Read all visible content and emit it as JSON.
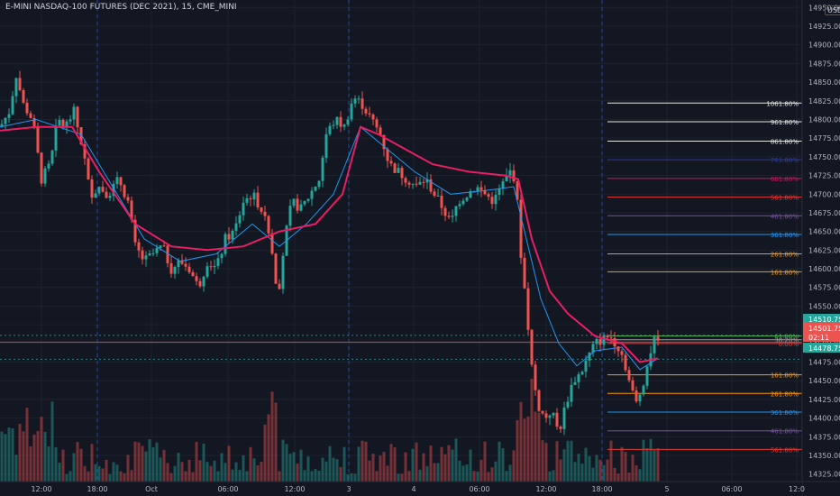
{
  "header": {
    "title": "E-MINI NASDAQ-100 FUTURES (DEC 2021), 15, CME_MINI",
    "currency": "USD"
  },
  "colors": {
    "background": "#131722",
    "grid": "#1e222d",
    "up": "#26a69a",
    "down": "#ef5350",
    "ema_slow": "#e91e63",
    "ema_fast": "#2196f3",
    "price_label_up": "#26a69a",
    "price_label_down": "#ef5350"
  },
  "chart_data": {
    "type": "candlestick",
    "y_axis": {
      "ticks": [
        14950,
        14925,
        14900,
        14875,
        14850,
        14825,
        14800,
        14775,
        14750,
        14725,
        14700,
        14675,
        14650,
        14625,
        14600,
        14575,
        14550,
        14525,
        14500,
        14475,
        14450,
        14425,
        14400,
        14375,
        14350,
        14325
      ],
      "tick_labels": [
        "14950.00",
        "14925.00",
        "14900.00",
        "14875.00",
        "14850.00",
        "14825.00",
        "14800.00",
        "14775.00",
        "14750.00",
        "14725.00",
        "14700.00",
        "14675.00",
        "14650.00",
        "14625.00",
        "14600.00",
        "14575.00",
        "14550.00",
        "14525.00",
        "14500.00",
        "14475.00",
        "14450.00",
        "14425.00",
        "14400.00",
        "14375.00",
        "14350.00",
        "14325.00"
      ],
      "range": [
        14315,
        14960
      ]
    },
    "x_axis": {
      "ticks": [
        "12:00",
        "18:00",
        "Oct",
        "06:00",
        "12:00",
        "3",
        "4",
        "06:00",
        "12:00",
        "18:00",
        "5",
        "06:00",
        "12:0"
      ]
    },
    "price_labels": [
      {
        "text": "14510.75",
        "value": 14510.75,
        "color": "up"
      },
      {
        "text": "14501.75",
        "value": 14501.75,
        "color": "down"
      },
      {
        "text": "02:11",
        "value": 14493.5,
        "color": "down"
      },
      {
        "text": "14478.75",
        "value": 14478.75,
        "color": "up"
      }
    ],
    "fib_levels": [
      {
        "label": "1061.80%",
        "value": 14822,
        "color": "#e6e6e6"
      },
      {
        "label": "961.80%",
        "value": 14797,
        "color": "#e6e6e6"
      },
      {
        "label": "861.80%",
        "value": 14771,
        "color": "#e6e6e6"
      },
      {
        "label": "761.80%",
        "value": 14746,
        "color": "#2a3bb0"
      },
      {
        "label": "661.80%",
        "value": 14721,
        "color": "#c2185b"
      },
      {
        "label": "561.80%",
        "value": 14696,
        "color": "#e53935"
      },
      {
        "label": "461.80%",
        "value": 14671,
        "color": "#7b4fa0"
      },
      {
        "label": "361.80%",
        "value": 14646,
        "color": "#2196f3"
      },
      {
        "label": "261.80%",
        "value": 14620,
        "color": "#ff9800"
      },
      {
        "label": "161.80%",
        "value": 14596,
        "color": "#ff9800"
      },
      {
        "label": "61.80%",
        "value": 14510,
        "color": "#4caf50"
      },
      {
        "label": "38.20%",
        "value": 14505,
        "color": "#9e9e9e"
      },
      {
        "label": "0.00%",
        "value": 14500,
        "color": "#e53935"
      },
      {
        "label": "161.80%",
        "value": 14458,
        "color": "#ff9800"
      },
      {
        "label": "261.80%",
        "value": 14433,
        "color": "#ff9800"
      },
      {
        "label": "361.80%",
        "value": 14408,
        "color": "#2196f3"
      },
      {
        "label": "461.80%",
        "value": 14383,
        "color": "#7b4fa0"
      },
      {
        "label": "561.80%",
        "value": 14358,
        "color": "#e53935"
      }
    ],
    "horizontal_lines": [
      {
        "value": 14510.75,
        "style": "dotted",
        "color": "#26a69a"
      },
      {
        "value": 14501.75,
        "style": "solid",
        "color": "#ef5350"
      },
      {
        "value": 14478.75,
        "style": "dotted",
        "color": "#26a69a"
      }
    ],
    "price_path": [
      [
        0,
        14790
      ],
      [
        10,
        14810
      ],
      [
        18,
        14860
      ],
      [
        26,
        14820
      ],
      [
        36,
        14800
      ],
      [
        46,
        14720
      ],
      [
        56,
        14740
      ],
      [
        64,
        14800
      ],
      [
        72,
        14790
      ],
      [
        82,
        14810
      ],
      [
        92,
        14760
      ],
      [
        100,
        14700
      ],
      [
        110,
        14710
      ],
      [
        120,
        14700
      ],
      [
        132,
        14720
      ],
      [
        142,
        14690
      ],
      [
        150,
        14630
      ],
      [
        160,
        14610
      ],
      [
        170,
        14620
      ],
      [
        180,
        14630
      ],
      [
        190,
        14600
      ],
      [
        200,
        14610
      ],
      [
        210,
        14600
      ],
      [
        220,
        14575
      ],
      [
        230,
        14610
      ],
      [
        240,
        14600
      ],
      [
        250,
        14640
      ],
      [
        260,
        14650
      ],
      [
        270,
        14690
      ],
      [
        280,
        14700
      ],
      [
        290,
        14680
      ],
      [
        300,
        14640
      ],
      [
        308,
        14560
      ],
      [
        316,
        14640
      ],
      [
        324,
        14690
      ],
      [
        334,
        14680
      ],
      [
        344,
        14700
      ],
      [
        354,
        14720
      ],
      [
        362,
        14780
      ],
      [
        372,
        14800
      ],
      [
        382,
        14790
      ],
      [
        392,
        14830
      ],
      [
        402,
        14820
      ],
      [
        412,
        14800
      ],
      [
        422,
        14780
      ],
      [
        432,
        14740
      ],
      [
        442,
        14730
      ],
      [
        452,
        14720
      ],
      [
        462,
        14710
      ],
      [
        472,
        14720
      ],
      [
        482,
        14700
      ],
      [
        492,
        14680
      ],
      [
        500,
        14660
      ],
      [
        508,
        14690
      ],
      [
        518,
        14700
      ],
      [
        528,
        14710
      ],
      [
        538,
        14700
      ],
      [
        548,
        14690
      ],
      [
        556,
        14710
      ],
      [
        566,
        14730
      ],
      [
        572,
        14720
      ],
      [
        578,
        14620
      ],
      [
        584,
        14550
      ],
      [
        590,
        14470
      ],
      [
        596,
        14420
      ],
      [
        604,
        14400
      ],
      [
        612,
        14410
      ],
      [
        620,
        14380
      ],
      [
        628,
        14420
      ],
      [
        636,
        14450
      ],
      [
        644,
        14460
      ],
      [
        652,
        14480
      ],
      [
        660,
        14500
      ],
      [
        668,
        14505
      ],
      [
        676,
        14510
      ],
      [
        684,
        14500
      ],
      [
        692,
        14480
      ],
      [
        700,
        14440
      ],
      [
        706,
        14420
      ],
      [
        712,
        14440
      ],
      [
        718,
        14470
      ],
      [
        724,
        14500
      ],
      [
        730,
        14510
      ]
    ],
    "ema_slow": [
      [
        0,
        14785
      ],
      [
        40,
        14790
      ],
      [
        80,
        14790
      ],
      [
        110,
        14730
      ],
      [
        150,
        14660
      ],
      [
        190,
        14630
      ],
      [
        230,
        14625
      ],
      [
        270,
        14630
      ],
      [
        310,
        14650
      ],
      [
        350,
        14660
      ],
      [
        380,
        14700
      ],
      [
        400,
        14790
      ],
      [
        420,
        14780
      ],
      [
        450,
        14760
      ],
      [
        480,
        14740
      ],
      [
        520,
        14730
      ],
      [
        560,
        14725
      ],
      [
        575,
        14720
      ],
      [
        590,
        14640
      ],
      [
        610,
        14570
      ],
      [
        630,
        14540
      ],
      [
        660,
        14510
      ],
      [
        690,
        14500
      ],
      [
        710,
        14475
      ],
      [
        730,
        14480
      ]
    ],
    "ema_fast": [
      [
        0,
        14790
      ],
      [
        40,
        14800
      ],
      [
        90,
        14780
      ],
      [
        120,
        14720
      ],
      [
        160,
        14640
      ],
      [
        200,
        14610
      ],
      [
        240,
        14620
      ],
      [
        280,
        14660
      ],
      [
        310,
        14630
      ],
      [
        340,
        14660
      ],
      [
        370,
        14700
      ],
      [
        400,
        14790
      ],
      [
        430,
        14760
      ],
      [
        460,
        14730
      ],
      [
        500,
        14700
      ],
      [
        540,
        14705
      ],
      [
        570,
        14710
      ],
      [
        580,
        14660
      ],
      [
        600,
        14560
      ],
      [
        620,
        14500
      ],
      [
        640,
        14470
      ],
      [
        660,
        14490
      ],
      [
        690,
        14495
      ],
      [
        710,
        14465
      ],
      [
        730,
        14480
      ]
    ],
    "volume_bars": {
      "description_free": true,
      "max_value": 1
    },
    "current_price": 14501.75
  }
}
